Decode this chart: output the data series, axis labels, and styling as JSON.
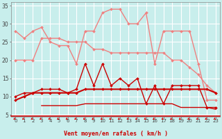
{
  "xlabel": "Vent moyen/en rafales ( km/h )",
  "background_color": "#c8eeec",
  "grid_color": "#ffffff",
  "x": [
    0,
    1,
    2,
    3,
    4,
    5,
    6,
    7,
    8,
    9,
    10,
    11,
    12,
    13,
    14,
    15,
    16,
    17,
    18,
    19,
    20,
    21,
    22,
    23
  ],
  "line1_y": [
    28,
    26,
    28,
    29,
    25,
    24,
    24,
    19,
    28,
    28,
    33,
    34,
    34,
    30,
    30,
    33,
    19,
    28,
    28,
    28,
    28,
    19,
    9,
    9
  ],
  "line2_y": [
    20,
    20,
    20,
    26,
    26,
    26,
    25,
    25,
    25,
    23,
    23,
    22,
    22,
    22,
    22,
    22,
    22,
    22,
    20,
    20,
    18,
    16,
    13,
    11
  ],
  "line3_y": [
    9,
    10,
    11,
    11,
    11,
    11,
    11,
    11,
    12,
    12,
    12,
    12,
    12,
    12,
    12,
    12,
    12,
    12,
    12,
    12,
    12,
    12,
    12,
    11
  ],
  "line4_y": [
    10,
    11,
    11,
    12,
    12,
    12,
    11,
    12,
    19,
    13,
    19,
    13,
    15,
    13,
    15,
    8,
    13,
    8,
    13,
    13,
    13,
    13,
    7,
    7
  ],
  "line5_y": [
    null,
    null,
    null,
    7.5,
    7.5,
    7.5,
    7.5,
    7.5,
    8,
    8,
    8,
    8,
    8,
    8,
    8,
    8,
    8,
    8,
    8,
    7,
    7,
    7,
    7,
    6.5
  ],
  "color_light": "#f08080",
  "color_dark": "#cc0000",
  "ylim": [
    4.5,
    36
  ],
  "yticks": [
    5,
    10,
    15,
    20,
    25,
    30,
    35
  ],
  "figsize": [
    3.2,
    2.0
  ],
  "dpi": 100
}
